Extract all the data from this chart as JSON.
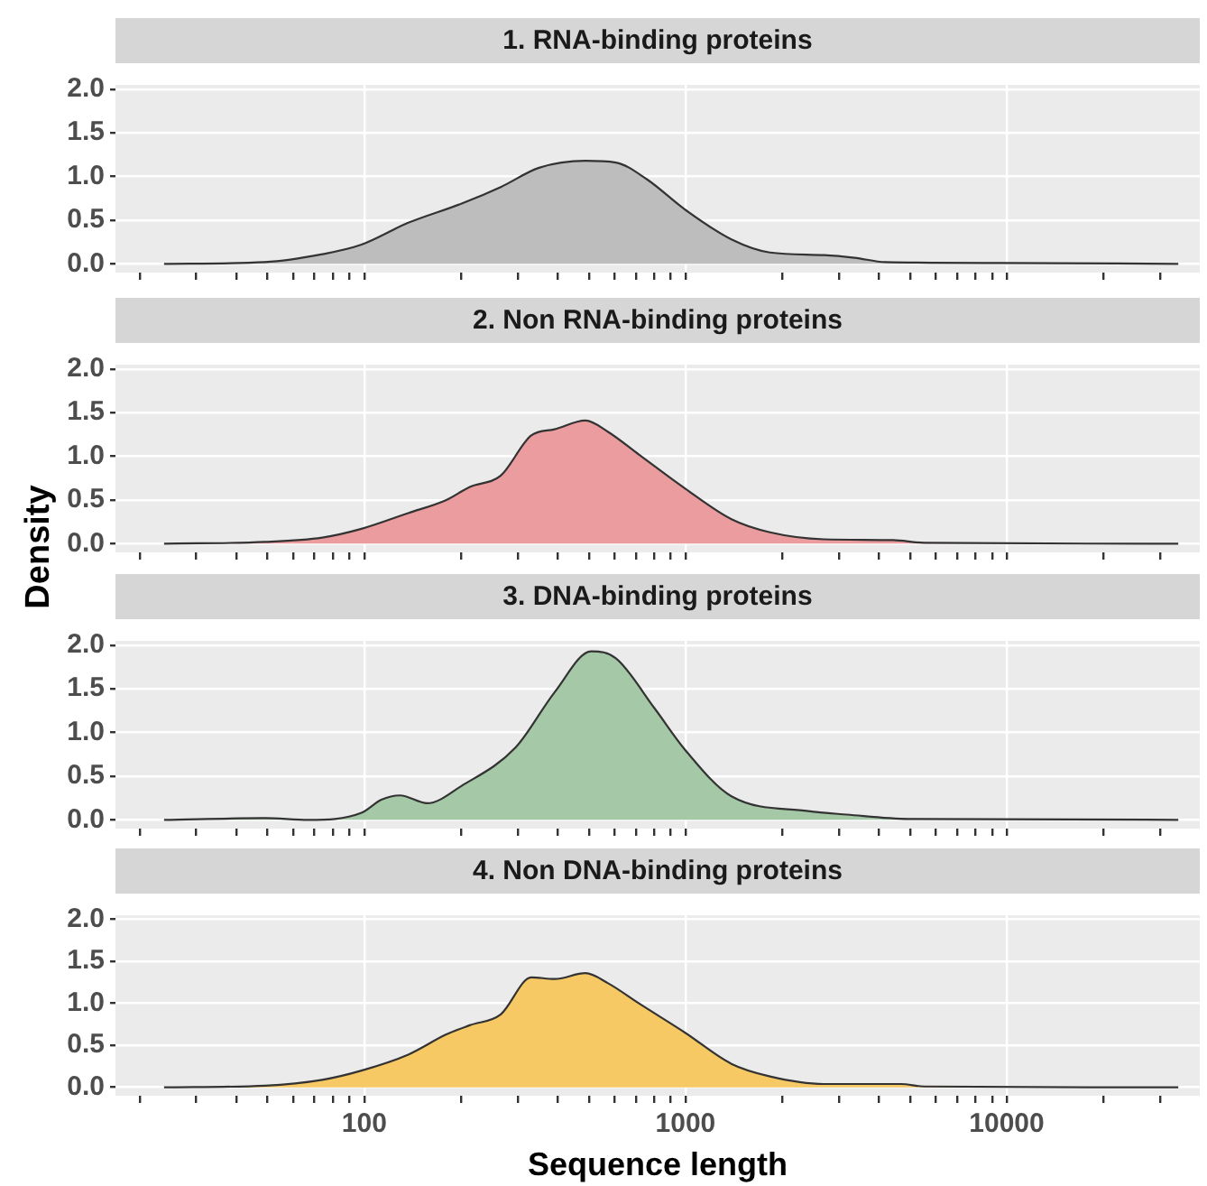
{
  "chart_data": [
    {
      "type": "area",
      "title": "1. RNA-binding proteins",
      "log": "x",
      "grid": true,
      "tick_labels": "y",
      "marker": "none",
      "color": "#bdbdbd",
      "x": [
        23.8,
        49,
        74,
        98,
        137,
        201,
        266,
        350,
        488,
        607,
        757,
        998,
        1390,
        1832,
        2698,
        3360,
        4190,
        9590,
        34200
      ],
      "values": [
        0,
        0.02,
        0.11,
        0.22,
        0.47,
        0.69,
        0.88,
        1.1,
        1.18,
        1.16,
        0.97,
        0.62,
        0.28,
        0.13,
        0.1,
        0.07,
        0.02,
        0.01,
        0
      ],
      "xlim": [
        16.8,
        39900
      ],
      "xticks": [
        {
          "value": 20,
          "label": null
        },
        {
          "value": 30,
          "label": null
        },
        {
          "value": 40,
          "label": null
        },
        {
          "value": 50,
          "label": null
        },
        {
          "value": 60,
          "label": null
        },
        {
          "value": 70,
          "label": null
        },
        {
          "value": 80,
          "label": null
        },
        {
          "value": 90,
          "label": null
        },
        100,
        {
          "value": 200,
          "label": null
        },
        {
          "value": 300,
          "label": null
        },
        {
          "value": 400,
          "label": null
        },
        {
          "value": 500,
          "label": null
        },
        {
          "value": 600,
          "label": null
        },
        {
          "value": 700,
          "label": null
        },
        {
          "value": 800,
          "label": null
        },
        {
          "value": 900,
          "label": null
        },
        1000,
        {
          "value": 2000,
          "label": null
        },
        {
          "value": 3000,
          "label": null
        },
        {
          "value": 4000,
          "label": null
        },
        {
          "value": 5000,
          "label": null
        },
        {
          "value": 6000,
          "label": null
        },
        {
          "value": 7000,
          "label": null
        },
        {
          "value": 8000,
          "label": null
        },
        {
          "value": 9000,
          "label": null
        },
        10000,
        {
          "value": 20000,
          "label": null
        },
        {
          "value": 30000,
          "label": null
        }
      ],
      "ylim": [
        -0.1,
        2.05
      ],
      "yticks": [
        {
          "value": 0,
          "label": "0.0"
        },
        {
          "value": 0.5,
          "label": "0.5"
        },
        {
          "value": 1,
          "label": "1.0"
        },
        {
          "value": 1.5,
          "label": "1.5"
        },
        {
          "value": 2,
          "label": "2.0"
        }
      ]
    },
    {
      "type": "area",
      "title": "2. Non RNA-binding proteins",
      "ylabel": "Density",
      "log": "x",
      "grid": true,
      "tick_labels": "y",
      "marker": "none",
      "color": "#eb9c9e",
      "x": [
        23.8,
        49,
        74,
        98,
        137,
        180,
        213,
        266,
        331,
        391,
        488,
        574,
        716,
        998,
        1390,
        1832,
        2698,
        4430,
        5530,
        34200
      ],
      "values": [
        0,
        0.02,
        0.07,
        0.17,
        0.35,
        0.5,
        0.65,
        0.78,
        1.24,
        1.31,
        1.41,
        1.28,
        1.02,
        0.63,
        0.28,
        0.13,
        0.05,
        0.04,
        0.01,
        0
      ],
      "xlim": [
        16.8,
        39900
      ],
      "xticks": [
        {
          "value": 20,
          "label": null
        },
        {
          "value": 30,
          "label": null
        },
        {
          "value": 40,
          "label": null
        },
        {
          "value": 50,
          "label": null
        },
        {
          "value": 60,
          "label": null
        },
        {
          "value": 70,
          "label": null
        },
        {
          "value": 80,
          "label": null
        },
        {
          "value": 90,
          "label": null
        },
        100,
        {
          "value": 200,
          "label": null
        },
        {
          "value": 300,
          "label": null
        },
        {
          "value": 400,
          "label": null
        },
        {
          "value": 500,
          "label": null
        },
        {
          "value": 600,
          "label": null
        },
        {
          "value": 700,
          "label": null
        },
        {
          "value": 800,
          "label": null
        },
        {
          "value": 900,
          "label": null
        },
        1000,
        {
          "value": 2000,
          "label": null
        },
        {
          "value": 3000,
          "label": null
        },
        {
          "value": 4000,
          "label": null
        },
        {
          "value": 5000,
          "label": null
        },
        {
          "value": 6000,
          "label": null
        },
        {
          "value": 7000,
          "label": null
        },
        {
          "value": 8000,
          "label": null
        },
        {
          "value": 9000,
          "label": null
        },
        10000,
        {
          "value": 20000,
          "label": null
        },
        {
          "value": 30000,
          "label": null
        }
      ],
      "ylim": [
        -0.1,
        2.05
      ],
      "yticks": [
        {
          "value": 0,
          "label": "0.0"
        },
        {
          "value": 0.5,
          "label": "0.5"
        },
        {
          "value": 1,
          "label": "1.0"
        },
        {
          "value": 1.5,
          "label": "1.5"
        },
        {
          "value": 2,
          "label": "2.0"
        }
      ]
    },
    {
      "type": "area",
      "title": "3. DNA-binding proteins",
      "log": "x",
      "grid": true,
      "tick_labels": "y",
      "marker": "none",
      "color": "#a5c8a6",
      "x": [
        23.8,
        49,
        67,
        98,
        113,
        129,
        157,
        201,
        296,
        391,
        509,
        607,
        800,
        998,
        1390,
        2410,
        3180,
        4950,
        34200
      ],
      "values": [
        0,
        0.02,
        0,
        0.08,
        0.23,
        0.28,
        0.19,
        0.39,
        0.83,
        1.46,
        1.93,
        1.85,
        1.28,
        0.8,
        0.27,
        0.1,
        0.06,
        0.01,
        0
      ],
      "xlim": [
        16.8,
        39900
      ],
      "xticks": [
        {
          "value": 20,
          "label": null
        },
        {
          "value": 30,
          "label": null
        },
        {
          "value": 40,
          "label": null
        },
        {
          "value": 50,
          "label": null
        },
        {
          "value": 60,
          "label": null
        },
        {
          "value": 70,
          "label": null
        },
        {
          "value": 80,
          "label": null
        },
        {
          "value": 90,
          "label": null
        },
        100,
        {
          "value": 200,
          "label": null
        },
        {
          "value": 300,
          "label": null
        },
        {
          "value": 400,
          "label": null
        },
        {
          "value": 500,
          "label": null
        },
        {
          "value": 600,
          "label": null
        },
        {
          "value": 700,
          "label": null
        },
        {
          "value": 800,
          "label": null
        },
        {
          "value": 900,
          "label": null
        },
        1000,
        {
          "value": 2000,
          "label": null
        },
        {
          "value": 3000,
          "label": null
        },
        {
          "value": 4000,
          "label": null
        },
        {
          "value": 5000,
          "label": null
        },
        {
          "value": 6000,
          "label": null
        },
        {
          "value": 7000,
          "label": null
        },
        {
          "value": 8000,
          "label": null
        },
        {
          "value": 9000,
          "label": null
        },
        10000,
        {
          "value": 20000,
          "label": null
        },
        {
          "value": 30000,
          "label": null
        }
      ],
      "ylim": [
        -0.1,
        2.05
      ],
      "yticks": [
        {
          "value": 0,
          "label": "0.0"
        },
        {
          "value": 0.5,
          "label": "0.5"
        },
        {
          "value": 1,
          "label": "1.0"
        },
        {
          "value": 1.5,
          "label": "1.5"
        },
        {
          "value": 2,
          "label": "2.0"
        }
      ]
    },
    {
      "type": "area",
      "title": "4. Non DNA-binding proteins",
      "xlabel": "Sequence length",
      "log": "x",
      "grid": true,
      "marker": "none",
      "color": "#f7c964",
      "x": [
        23.8,
        49,
        74,
        98,
        137,
        180,
        213,
        266,
        331,
        391,
        488,
        574,
        716,
        998,
        1390,
        1832,
        2698,
        4680,
        5530,
        34200
      ],
      "values": [
        0,
        0.02,
        0.09,
        0.2,
        0.39,
        0.63,
        0.74,
        0.87,
        1.31,
        1.29,
        1.36,
        1.24,
        1.0,
        0.65,
        0.28,
        0.13,
        0.04,
        0.04,
        0.01,
        0
      ],
      "xlim": [
        16.8,
        39900
      ],
      "xticks": [
        {
          "value": 20,
          "label": null
        },
        {
          "value": 30,
          "label": null
        },
        {
          "value": 40,
          "label": null
        },
        {
          "value": 50,
          "label": null
        },
        {
          "value": 60,
          "label": null
        },
        {
          "value": 70,
          "label": null
        },
        {
          "value": 80,
          "label": null
        },
        {
          "value": 90,
          "label": null
        },
        100,
        {
          "value": 200,
          "label": null
        },
        {
          "value": 300,
          "label": null
        },
        {
          "value": 400,
          "label": null
        },
        {
          "value": 500,
          "label": null
        },
        {
          "value": 600,
          "label": null
        },
        {
          "value": 700,
          "label": null
        },
        {
          "value": 800,
          "label": null
        },
        {
          "value": 900,
          "label": null
        },
        1000,
        {
          "value": 2000,
          "label": null
        },
        {
          "value": 3000,
          "label": null
        },
        {
          "value": 4000,
          "label": null
        },
        {
          "value": 5000,
          "label": null
        },
        {
          "value": 6000,
          "label": null
        },
        {
          "value": 7000,
          "label": null
        },
        {
          "value": 8000,
          "label": null
        },
        {
          "value": 9000,
          "label": null
        },
        10000,
        {
          "value": 20000,
          "label": null
        },
        {
          "value": 30000,
          "label": null
        }
      ],
      "ylim": [
        -0.1,
        2.05
      ],
      "yticks": [
        {
          "value": 0,
          "label": "0.0"
        },
        {
          "value": 0.5,
          "label": "0.5"
        },
        {
          "value": 1,
          "label": "1.0"
        },
        {
          "value": 1.5,
          "label": "1.5"
        },
        {
          "value": 2,
          "label": "2.0"
        }
      ]
    }
  ]
}
